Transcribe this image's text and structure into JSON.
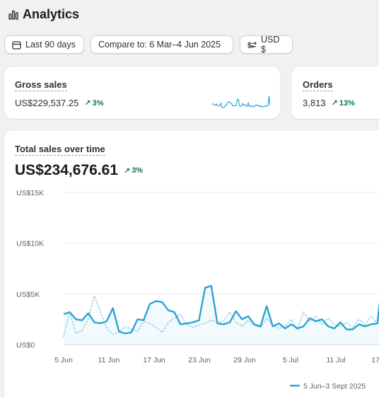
{
  "header": {
    "title": "Analytics",
    "icon": "bar-chart-icon"
  },
  "filters": {
    "date_range": "Last 90 days",
    "compare": "Compare to: 6 Mar–4 Jun 2025",
    "currency": "USD $"
  },
  "cards": {
    "gross_sales": {
      "label": "Gross sales",
      "value": "US$229,537.25",
      "delta": "3%"
    },
    "orders": {
      "label": "Orders",
      "value": "3,813",
      "delta": "13%"
    }
  },
  "total_sales": {
    "label": "Total sales over time",
    "value": "US$234,676.61",
    "delta": "3%"
  },
  "colors": {
    "primary": "#2ba4d6",
    "compare": "#8fd0ea",
    "positive": "#0c7a43"
  },
  "chart_data": {
    "type": "line",
    "y_ticks": [
      "US$15K",
      "US$10K",
      "US$5K",
      "US$0"
    ],
    "y_tick_values": [
      15000,
      10000,
      5000,
      0
    ],
    "ylim": [
      0,
      15000
    ],
    "x_ticks": [
      "5 Jun",
      "11 Jun",
      "17 Jun",
      "23 Jun",
      "29 Jun",
      "5 Jul",
      "11 Jul",
      "17"
    ],
    "legend": "5 Jun–3 Sept 2025",
    "grid": true,
    "series": [
      {
        "name": "5 Jun–3 Sept 2025",
        "style": "solid",
        "values": [
          3000,
          3200,
          2500,
          2400,
          3100,
          2200,
          2100,
          2300,
          3600,
          1300,
          1100,
          1200,
          2500,
          2400,
          4000,
          4300,
          4200,
          3400,
          3200,
          2000,
          2100,
          2200,
          2400,
          5600,
          5800,
          2100,
          2000,
          2200,
          3300,
          2500,
          2800,
          2000,
          1800,
          3800,
          1800,
          2100,
          1600,
          2000,
          1600,
          1800,
          2600,
          2300,
          2500,
          1800,
          1600,
          2200,
          1500,
          1500,
          2000,
          1800,
          2000,
          2100,
          7500,
          2300
        ]
      },
      {
        "name": "",
        "style": "dotted",
        "values": [
          800,
          3200,
          1100,
          1400,
          2500,
          4800,
          3200,
          1600,
          1000,
          1200,
          1800,
          1500,
          1300,
          2300,
          2100,
          1700,
          1200,
          2200,
          2600,
          3000,
          2000,
          1700,
          1900,
          2100,
          2400,
          2200,
          2300,
          3200,
          2200,
          1800,
          2400,
          1900,
          1700,
          2600,
          1900,
          1600,
          1800,
          2500,
          1500,
          3200,
          2300,
          2800,
          2000,
          2600,
          2000,
          1800,
          2200,
          1700,
          2500,
          2000,
          2800,
          2100,
          1800,
          1900
        ]
      }
    ]
  }
}
